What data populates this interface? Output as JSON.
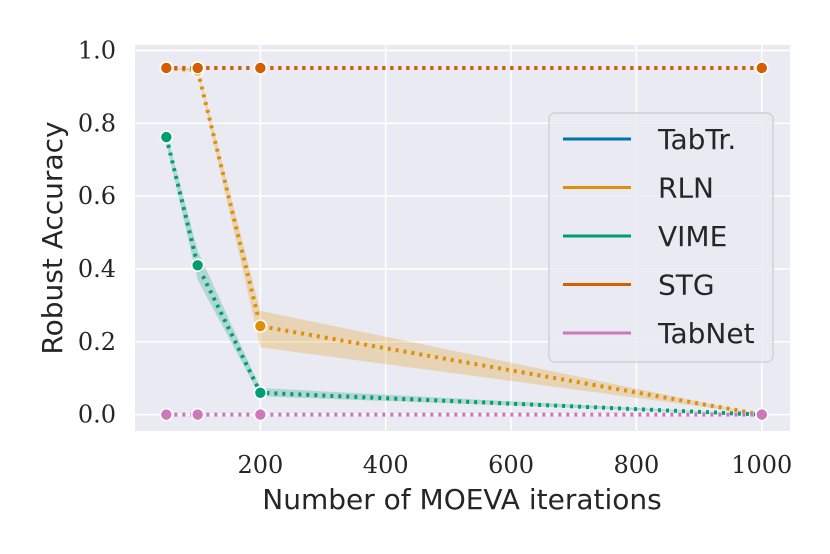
{
  "chart_data": {
    "type": "line",
    "title": "",
    "xlabel": "Number of MOEVA iterations",
    "ylabel": "Robust Accuracy",
    "xlim": [
      0,
      1045
    ],
    "ylim": [
      -0.045,
      1.015
    ],
    "xticks": [
      200,
      400,
      600,
      800,
      1000
    ],
    "xtick_labels": [
      "200",
      "400",
      "600",
      "800",
      "1000"
    ],
    "yticks": [
      0.0,
      0.2,
      0.4,
      0.6,
      0.8,
      1.0
    ],
    "ytick_labels": [
      "0.0",
      "0.2",
      "0.4",
      "0.6",
      "0.8",
      "1.0"
    ],
    "grid": true,
    "legend_position": "right",
    "x": [
      50,
      100,
      200,
      1000
    ],
    "series": [
      {
        "name": "TabTr.",
        "color": "#0173b2",
        "values": [
          0.952,
          0.952,
          0.952,
          0.952
        ],
        "band_low": null,
        "band_high": null
      },
      {
        "name": "RLN",
        "color": "#de8f05",
        "values": [
          0.952,
          0.945,
          0.243,
          0.0
        ],
        "band_low": [
          0.952,
          0.94,
          0.185,
          0.0
        ],
        "band_high": [
          0.952,
          0.952,
          0.285,
          0.0
        ]
      },
      {
        "name": "VIME",
        "color": "#029e73",
        "values": [
          0.762,
          0.41,
          0.06,
          0.0
        ],
        "band_low": [
          0.745,
          0.37,
          0.05,
          0.0
        ],
        "band_high": [
          0.775,
          0.45,
          0.073,
          0.0
        ]
      },
      {
        "name": "STG",
        "color": "#d55e00",
        "values": [
          0.952,
          0.952,
          0.952,
          0.952
        ],
        "band_low": null,
        "band_high": null
      },
      {
        "name": "TabNet",
        "color": "#cc78bc",
        "values": [
          0.0,
          0.0,
          0.0,
          0.0
        ],
        "band_low": null,
        "band_high": null
      }
    ]
  }
}
